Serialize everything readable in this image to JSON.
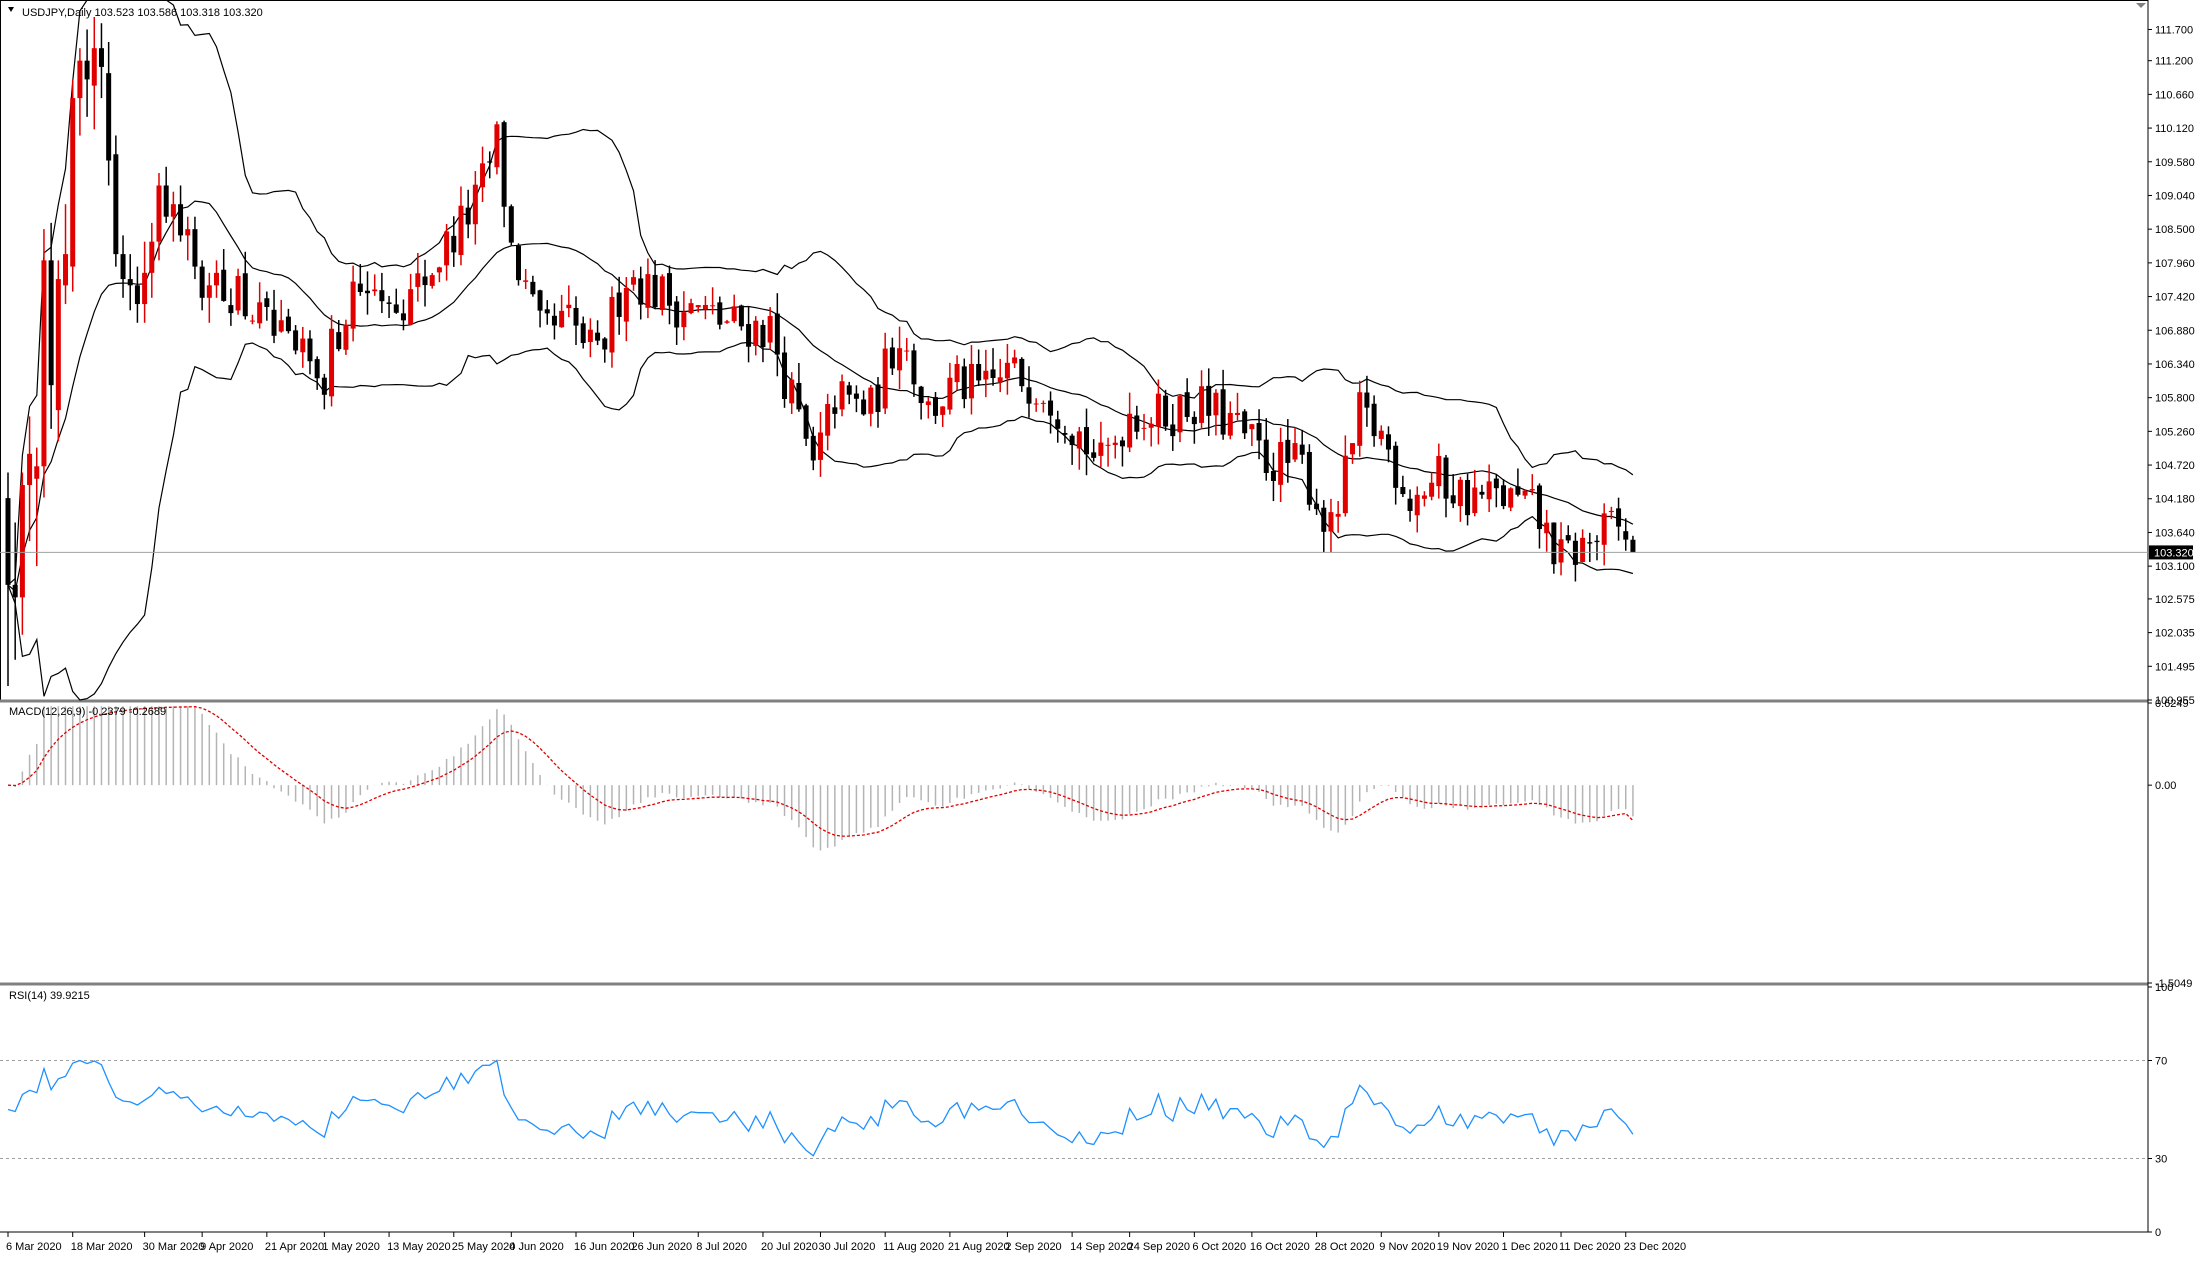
{
  "symbol_header": "USDJPY,Daily  103.523 103.586 103.318 103.320",
  "macd": {
    "label": "MACD(12,26,9) -0.2379 -0.2689",
    "axis": [
      "0.6249",
      "0.00",
      "-1.5049"
    ],
    "ylim": [
      -1.5049,
      0.6249
    ]
  },
  "rsi": {
    "label": "RSI(14) 39.9215",
    "axis": [
      "100",
      "70",
      "30",
      "0"
    ],
    "ylim": [
      0,
      100
    ],
    "levels": [
      70,
      30
    ]
  },
  "price_axis": [
    "111.700",
    "111.200",
    "110.660",
    "110.120",
    "109.580",
    "109.040",
    "108.500",
    "107.960",
    "107.420",
    "106.880",
    "106.340",
    "105.800",
    "105.260",
    "104.720",
    "104.180",
    "103.640",
    "103.100",
    "102.575",
    "102.035",
    "101.495",
    "100.955"
  ],
  "current_price": "103.320",
  "x_labels": [
    {
      "i": 0,
      "text": "6 Mar 2020"
    },
    {
      "i": 9,
      "text": "18 Mar 2020"
    },
    {
      "i": 19,
      "text": "30 Mar 2020"
    },
    {
      "i": 27,
      "text": "9 Apr 2020"
    },
    {
      "i": 36,
      "text": "21 Apr 2020"
    },
    {
      "i": 44,
      "text": "1 May 2020"
    },
    {
      "i": 53,
      "text": "13 May 2020"
    },
    {
      "i": 62,
      "text": "25 May 2020"
    },
    {
      "i": 70,
      "text": "4 Jun 2020"
    },
    {
      "i": 79,
      "text": "16 Jun 2020"
    },
    {
      "i": 87,
      "text": "26 Jun 2020"
    },
    {
      "i": 96,
      "text": "8 Jul 2020"
    },
    {
      "i": 105,
      "text": "20 Jul 2020"
    },
    {
      "i": 113,
      "text": "30 Jul 2020"
    },
    {
      "i": 122,
      "text": "11 Aug 2020"
    },
    {
      "i": 131,
      "text": "21 Aug 2020"
    },
    {
      "i": 139,
      "text": "2 Sep 2020"
    },
    {
      "i": 148,
      "text": "14 Sep 2020"
    },
    {
      "i": 156,
      "text": "24 Sep 2020"
    },
    {
      "i": 165,
      "text": "6 Oct 2020"
    },
    {
      "i": 173,
      "text": "16 Oct 2020"
    },
    {
      "i": 182,
      "text": "28 Oct 2020"
    },
    {
      "i": 191,
      "text": "9 Nov 2020"
    },
    {
      "i": 199,
      "text": "19 Nov 2020"
    },
    {
      "i": 208,
      "text": "1 Dec 2020"
    },
    {
      "i": 216,
      "text": "11 Dec 2020"
    },
    {
      "i": 225,
      "text": "23 Dec 2020"
    }
  ],
  "colors": {
    "up": "#e00000",
    "down": "#000000",
    "bands": "#000000",
    "macd_hist": "#b4b4b4",
    "macd_signal": "#e00000",
    "rsi": "#1e90ff",
    "grid": "#a0a0a0"
  },
  "chart_data": {
    "type": "candlestick",
    "title": "USDJPY,Daily",
    "indicators": [
      "Bollinger Bands",
      "MACD(12,26,9)",
      "RSI(14)"
    ],
    "ylim": [
      100.955,
      111.98
    ],
    "y_anchor": [
      [
        104.19,
        104.6,
        101.18,
        102.8
      ],
      [
        102.8,
        103.8,
        101.6,
        102.6
      ],
      [
        102.6,
        104.6,
        102.0,
        104.4
      ],
      [
        104.4,
        105.5,
        103.5,
        104.9
      ],
      [
        104.5,
        105.0,
        103.1,
        104.7
      ],
      [
        104.7,
        108.5,
        104.2,
        108.0
      ],
      [
        108.0,
        108.6,
        105.3,
        106.0
      ],
      [
        105.6,
        108.0,
        105.1,
        107.7
      ],
      [
        107.6,
        108.9,
        107.3,
        108.1
      ],
      [
        107.9,
        110.9,
        107.5,
        110.6
      ],
      [
        110.6,
        111.4,
        110.0,
        111.2
      ],
      [
        111.2,
        111.7,
        110.3,
        110.9
      ],
      [
        110.8,
        111.9,
        110.1,
        111.4
      ],
      [
        111.4,
        111.8,
        110.6,
        111.1
      ],
      [
        111.0,
        111.5,
        109.2,
        109.6
      ],
      [
        109.7,
        110.0,
        107.9,
        108.1
      ],
      [
        108.1,
        108.4,
        107.4,
        107.7
      ],
      [
        107.7,
        108.1,
        107.2,
        107.6
      ],
      [
        107.6,
        107.9,
        107.0,
        107.3
      ],
      [
        107.3,
        108.3,
        107.0,
        107.8
      ],
      [
        107.8,
        108.6,
        107.4,
        108.3
      ],
      [
        108.3,
        109.4,
        108.0,
        109.2
      ],
      [
        109.2,
        109.5,
        108.6,
        108.7
      ],
      [
        108.7,
        109.1,
        108.3,
        108.9
      ],
      [
        108.9,
        109.2,
        108.3,
        108.4
      ],
      [
        108.4,
        108.7,
        108.0,
        108.5
      ],
      [
        108.5,
        108.7,
        107.7,
        107.9
      ],
      [
        107.9,
        108.0,
        107.2,
        107.4
      ],
      [
        107.4,
        107.8,
        107.0,
        107.6
      ],
      [
        107.6,
        108.0,
        107.4,
        107.8
      ]
    ],
    "candles": [],
    "note": ""
  }
}
